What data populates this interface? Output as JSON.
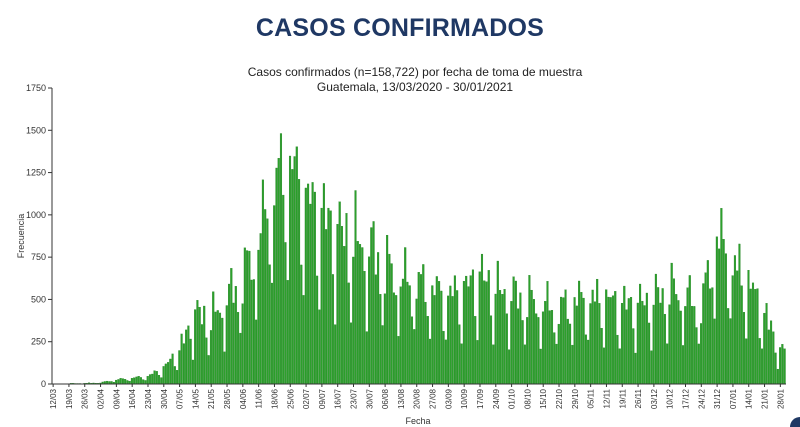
{
  "page": {
    "heading": "CASOS CONFIRMADOS",
    "accent_color": "#1f3864"
  },
  "chart_data": {
    "type": "bar",
    "title": "Casos confirmados (n=158,722) por fecha de toma de muestra",
    "subtitle": "Guatemala, 13/03/2020 - 30/01/2021",
    "xlabel": "Fecha",
    "ylabel": "Frecuencia",
    "ylim": [
      0,
      1750
    ],
    "yticks": [
      0,
      250,
      500,
      750,
      1000,
      1250,
      1500,
      1750
    ],
    "grid": false,
    "bar_color": "#2ca02c",
    "bar_edge_color": "#1a7a1a",
    "x_start": "2020-03-12",
    "x_end": "2021-01-30",
    "xticks": [
      "12/03",
      "19/03",
      "26/03",
      "02/04",
      "09/04",
      "16/04",
      "23/04",
      "30/04",
      "07/05",
      "14/05",
      "21/05",
      "28/05",
      "04/06",
      "11/06",
      "18/06",
      "25/06",
      "02/07",
      "09/07",
      "16/07",
      "23/07",
      "30/07",
      "06/08",
      "13/08",
      "20/08",
      "27/08",
      "03/09",
      "10/09",
      "17/09",
      "24/09",
      "01/10",
      "08/10",
      "15/10",
      "22/10",
      "29/10",
      "05/11",
      "12/11",
      "19/11",
      "26/11",
      "03/12",
      "10/12",
      "17/12",
      "24/12",
      "31/12",
      "07/01",
      "14/01",
      "21/01",
      "28/01"
    ],
    "weekly_anchor_values": [
      1,
      3,
      4,
      8,
      25,
      35,
      45,
      95,
      200,
      420,
      380,
      500,
      620,
      850,
      1180,
      1300,
      1100,
      1000,
      900,
      850,
      800,
      700,
      620,
      600,
      560,
      520,
      560,
      640,
      560,
      520,
      500,
      470,
      440,
      500,
      500,
      500,
      470,
      470,
      500,
      560,
      520,
      450,
      880,
      700,
      600,
      420,
      200
    ]
  }
}
